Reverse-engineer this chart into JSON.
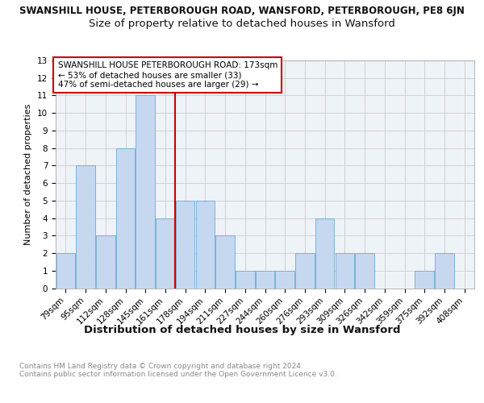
{
  "title": "SWANSHILL HOUSE, PETERBOROUGH ROAD, WANSFORD, PETERBOROUGH, PE8 6JN",
  "subtitle": "Size of property relative to detached houses in Wansford",
  "xlabel": "Distribution of detached houses by size in Wansford",
  "ylabel": "Number of detached properties",
  "categories": [
    "79sqm",
    "95sqm",
    "112sqm",
    "128sqm",
    "145sqm",
    "161sqm",
    "178sqm",
    "194sqm",
    "211sqm",
    "227sqm",
    "244sqm",
    "260sqm",
    "276sqm",
    "293sqm",
    "309sqm",
    "326sqm",
    "342sqm",
    "359sqm",
    "375sqm",
    "392sqm",
    "408sqm"
  ],
  "values": [
    2,
    7,
    3,
    8,
    11,
    4,
    5,
    5,
    3,
    1,
    1,
    1,
    2,
    4,
    2,
    2,
    0,
    0,
    1,
    2,
    0
  ],
  "bar_color": "#c5d8f0",
  "bar_edge_color": "#6aaad4",
  "vline_x": 5.5,
  "vline_color": "#cc0000",
  "annotation_line1": "SWANSHILL HOUSE PETERBOROUGH ROAD: 173sqm",
  "annotation_line2": "← 53% of detached houses are smaller (33)",
  "annotation_line3": "47% of semi-detached houses are larger (29) →",
  "annotation_box_color": "#ffffff",
  "annotation_border_color": "#cc0000",
  "ylim": [
    0,
    13
  ],
  "yticks": [
    0,
    1,
    2,
    3,
    4,
    5,
    6,
    7,
    8,
    9,
    10,
    11,
    12,
    13
  ],
  "grid_color": "#cccccc",
  "background_color": "#eef3f8",
  "footer": "Contains HM Land Registry data © Crown copyright and database right 2024.\nContains public sector information licensed under the Open Government Licence v3.0.",
  "title_fontsize": 8.5,
  "subtitle_fontsize": 9.5,
  "xlabel_fontsize": 9.5,
  "ylabel_fontsize": 8,
  "tick_fontsize": 7.5,
  "annotation_fontsize": 7.5,
  "footer_fontsize": 6.5
}
